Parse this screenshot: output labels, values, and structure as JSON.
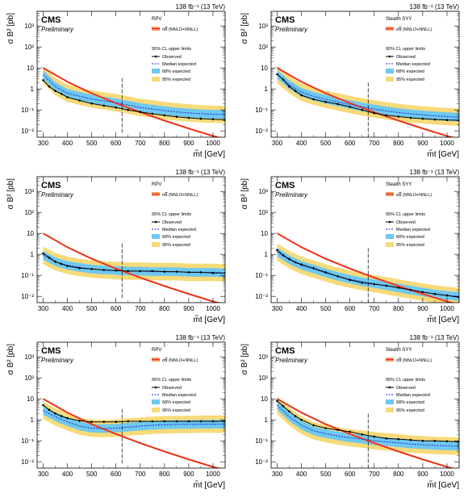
{
  "common": {
    "lumi_label": "138 fb⁻¹ (13 TeV)",
    "experiment": "CMS",
    "status": "Preliminary",
    "ylabel": "σ B² [pb]",
    "xlabel": "m̃t [GeV]",
    "xticks": [
      "300",
      "400",
      "500",
      "600",
      "700",
      "800",
      "900",
      "1000"
    ],
    "yticks": [
      "10⁻²",
      "10⁻¹",
      "1",
      "10",
      "10²",
      "10³"
    ],
    "theory_label": "σt̃t̃ (NNLO+NNLL)",
    "limits_header": "95% CL upper limits",
    "observed_label": "Observed",
    "median_label": "Median expected",
    "band68_label": "68% expected",
    "band95_label": "95% expected",
    "colors": {
      "theory": "#e8281e",
      "theory_band": "#f4a06a",
      "band68": "#6ec8ef",
      "band95": "#f7da7a",
      "observed": "#000000",
      "median": "#1a2ad6"
    }
  },
  "chart_data": [
    {
      "type": "line",
      "model": "RPV",
      "xlim": [
        275,
        1050
      ],
      "ylim": [
        0.005,
        5000
      ],
      "y_log": true,
      "mass_line": 625,
      "theory": {
        "x": [
          300,
          400,
          500,
          600,
          700,
          800,
          900,
          1000,
          1050
        ],
        "y": [
          10.0,
          2.2,
          0.62,
          0.21,
          0.078,
          0.031,
          0.013,
          0.0057,
          0.004
        ]
      },
      "expected": {
        "x": [
          300,
          350,
          400,
          450,
          500,
          550,
          600,
          650,
          700,
          750,
          800,
          850,
          900,
          950,
          1000,
          1050
        ],
        "y": [
          4.8,
          1.3,
          0.62,
          0.45,
          0.33,
          0.27,
          0.22,
          0.17,
          0.13,
          0.11,
          0.092,
          0.08,
          0.072,
          0.066,
          0.062,
          0.06
        ]
      },
      "observed": {
        "x": [
          300,
          325,
          350,
          375,
          400,
          450,
          500,
          550,
          600,
          650,
          700,
          750,
          800,
          850,
          900,
          950,
          1000,
          1050
        ],
        "y": [
          2.6,
          1.3,
          0.8,
          0.58,
          0.4,
          0.28,
          0.2,
          0.16,
          0.13,
          0.1,
          0.08,
          0.065,
          0.055,
          0.047,
          0.042,
          0.038,
          0.036,
          0.034
        ]
      }
    },
    {
      "type": "line",
      "model": "Stealth SYY",
      "xlim": [
        275,
        1050
      ],
      "ylim": [
        0.005,
        5000
      ],
      "y_log": true,
      "mass_line": 675,
      "theory": {
        "x": [
          300,
          400,
          500,
          600,
          700,
          800,
          900,
          1000,
          1050
        ],
        "y": [
          10.0,
          2.2,
          0.62,
          0.21,
          0.078,
          0.031,
          0.013,
          0.0057,
          0.004
        ]
      },
      "expected": {
        "x": [
          300,
          350,
          400,
          450,
          500,
          550,
          600,
          650,
          700,
          750,
          800,
          850,
          900,
          950,
          1000,
          1050
        ],
        "y": [
          5.0,
          1.6,
          0.7,
          0.45,
          0.32,
          0.24,
          0.18,
          0.14,
          0.11,
          0.09,
          0.075,
          0.065,
          0.058,
          0.052,
          0.048,
          0.045
        ]
      },
      "observed": {
        "x": [
          300,
          325,
          350,
          375,
          400,
          450,
          500,
          550,
          600,
          650,
          700,
          750,
          800,
          850,
          900,
          950,
          1000,
          1050
        ],
        "y": [
          5.0,
          2.8,
          1.3,
          0.8,
          0.5,
          0.32,
          0.24,
          0.19,
          0.14,
          0.1,
          0.07,
          0.055,
          0.048,
          0.042,
          0.038,
          0.035,
          0.033,
          0.032
        ]
      }
    },
    {
      "type": "line",
      "model": "RPV",
      "xlim": [
        275,
        1050
      ],
      "ylim": [
        0.005,
        5000
      ],
      "y_log": true,
      "mass_line": 625,
      "theory": {
        "x": [
          300,
          400,
          500,
          600,
          700,
          800,
          900,
          1000,
          1050
        ],
        "y": [
          10.0,
          2.2,
          0.62,
          0.21,
          0.078,
          0.031,
          0.013,
          0.0057,
          0.004
        ]
      },
      "expected": {
        "x": [
          300,
          350,
          400,
          450,
          500,
          550,
          600,
          650,
          700,
          750,
          800,
          850,
          900,
          950,
          1000,
          1050
        ],
        "y": [
          0.9,
          0.45,
          0.3,
          0.24,
          0.2,
          0.18,
          0.17,
          0.16,
          0.16,
          0.15,
          0.15,
          0.15,
          0.14,
          0.14,
          0.14,
          0.13
        ]
      },
      "observed": {
        "x": [
          300,
          325,
          350,
          375,
          400,
          450,
          500,
          550,
          600,
          650,
          700,
          750,
          800,
          850,
          900,
          950,
          1000,
          1050
        ],
        "y": [
          1.1,
          0.7,
          0.45,
          0.35,
          0.28,
          0.22,
          0.2,
          0.18,
          0.17,
          0.16,
          0.16,
          0.16,
          0.15,
          0.15,
          0.14,
          0.14,
          0.13,
          0.13
        ]
      }
    },
    {
      "type": "line",
      "model": "Stealth SYY",
      "xlim": [
        275,
        1050
      ],
      "ylim": [
        0.005,
        5000
      ],
      "y_log": true,
      "mass_line": 675,
      "theory": {
        "x": [
          300,
          400,
          500,
          600,
          700,
          800,
          900,
          1000,
          1050
        ],
        "y": [
          10.0,
          2.2,
          0.62,
          0.21,
          0.078,
          0.031,
          0.013,
          0.0057,
          0.004
        ]
      },
      "expected": {
        "x": [
          300,
          350,
          400,
          450,
          500,
          550,
          600,
          650,
          700,
          750,
          800,
          850,
          900,
          950,
          1000,
          1050
        ],
        "y": [
          1.3,
          0.55,
          0.3,
          0.2,
          0.13,
          0.09,
          0.065,
          0.05,
          0.04,
          0.032,
          0.025,
          0.02,
          0.016,
          0.013,
          0.011,
          0.01
        ]
      },
      "observed": {
        "x": [
          300,
          325,
          350,
          375,
          400,
          450,
          500,
          550,
          600,
          650,
          700,
          750,
          800,
          850,
          900,
          950,
          1000,
          1050
        ],
        "y": [
          1.6,
          0.9,
          0.6,
          0.42,
          0.33,
          0.22,
          0.14,
          0.09,
          0.06,
          0.045,
          0.038,
          0.032,
          0.026,
          0.02,
          0.016,
          0.013,
          0.011,
          0.009
        ]
      }
    },
    {
      "type": "line",
      "model": "RPV",
      "xlim": [
        275,
        1050
      ],
      "ylim": [
        0.005,
        5000
      ],
      "y_log": true,
      "mass_line": 625,
      "theory": {
        "x": [
          300,
          400,
          500,
          600,
          700,
          800,
          900,
          1000,
          1050
        ],
        "y": [
          10.0,
          2.2,
          0.62,
          0.21,
          0.078,
          0.031,
          0.013,
          0.0057,
          0.004
        ]
      },
      "expected": {
        "x": [
          300,
          350,
          400,
          450,
          500,
          550,
          600,
          650,
          700,
          750,
          800,
          850,
          900,
          950,
          1000,
          1050
        ],
        "y": [
          2.8,
          1.4,
          0.8,
          0.5,
          0.4,
          0.38,
          0.4,
          0.45,
          0.5,
          0.55,
          0.58,
          0.6,
          0.6,
          0.62,
          0.62,
          0.62
        ]
      },
      "observed": {
        "x": [
          300,
          325,
          350,
          375,
          400,
          450,
          500,
          550,
          600,
          650,
          700,
          750,
          800,
          850,
          900,
          950,
          1000,
          1050
        ],
        "y": [
          5.0,
          3.0,
          2.0,
          1.5,
          1.2,
          0.9,
          0.8,
          0.8,
          0.8,
          0.85,
          0.85,
          0.85,
          0.85,
          0.85,
          0.85,
          0.85,
          0.85,
          0.85
        ]
      }
    },
    {
      "type": "line",
      "model": "Stealth SYY",
      "xlim": [
        275,
        1050
      ],
      "ylim": [
        0.005,
        5000
      ],
      "y_log": true,
      "mass_line": 675,
      "theory": {
        "x": [
          300,
          400,
          500,
          600,
          700,
          800,
          900,
          1000,
          1050
        ],
        "y": [
          10.0,
          2.2,
          0.62,
          0.21,
          0.078,
          0.031,
          0.013,
          0.0057,
          0.004
        ]
      },
      "expected": {
        "x": [
          300,
          350,
          400,
          450,
          500,
          550,
          600,
          650,
          700,
          750,
          800,
          850,
          900,
          950,
          1000,
          1050
        ],
        "y": [
          5.0,
          1.4,
          0.55,
          0.3,
          0.22,
          0.17,
          0.14,
          0.12,
          0.1,
          0.09,
          0.08,
          0.07,
          0.065,
          0.06,
          0.058,
          0.055
        ]
      },
      "observed": {
        "x": [
          300,
          325,
          350,
          375,
          400,
          450,
          500,
          550,
          600,
          650,
          700,
          750,
          800,
          850,
          900,
          950,
          1000,
          1050
        ],
        "y": [
          8.0,
          4.5,
          2.5,
          1.5,
          1.0,
          0.55,
          0.4,
          0.33,
          0.27,
          0.2,
          0.16,
          0.13,
          0.12,
          0.11,
          0.1,
          0.1,
          0.095,
          0.09
        ]
      }
    }
  ]
}
